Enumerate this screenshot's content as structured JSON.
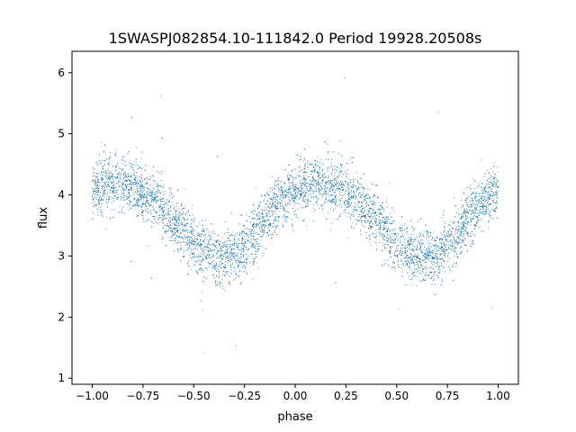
{
  "chart_data": {
    "type": "scatter",
    "title": "1SWASPJ082854.10-111842.0 Period 19928.20508s",
    "xlabel": "phase",
    "ylabel": "flux",
    "xlim": [
      -1.1,
      1.1
    ],
    "ylim": [
      0.9,
      6.35
    ],
    "x_ticks": [
      -1.0,
      -0.75,
      -0.5,
      -0.25,
      0.0,
      0.25,
      0.5,
      0.75,
      1.0
    ],
    "x_tick_labels": [
      "−1.00",
      "−0.75",
      "−0.50",
      "−0.25",
      "0.00",
      "0.25",
      "0.50",
      "0.75",
      "1.00"
    ],
    "y_ticks": [
      1,
      2,
      3,
      4,
      5,
      6
    ],
    "y_tick_labels": [
      "1",
      "2",
      "3",
      "4",
      "5",
      "6"
    ],
    "grid": false,
    "legend": "none",
    "marker_color": "#1f77b4",
    "series": [
      {
        "description_points": "phase-folded light curve; sampled trend points (phase, median flux)",
        "x": [
          -1.0,
          -0.9,
          -0.8,
          -0.7,
          -0.6,
          -0.5,
          -0.4,
          -0.3,
          -0.2,
          -0.1,
          0.0,
          0.1,
          0.2,
          0.3,
          0.4,
          0.5,
          0.6,
          0.7,
          0.8,
          0.9,
          1.0
        ],
        "y": [
          4.1,
          4.2,
          4.15,
          3.95,
          3.6,
          3.2,
          3.0,
          3.0,
          3.35,
          3.8,
          4.1,
          4.2,
          4.15,
          3.95,
          3.6,
          3.2,
          3.0,
          3.0,
          3.35,
          3.8,
          4.1
        ]
      }
    ]
  }
}
